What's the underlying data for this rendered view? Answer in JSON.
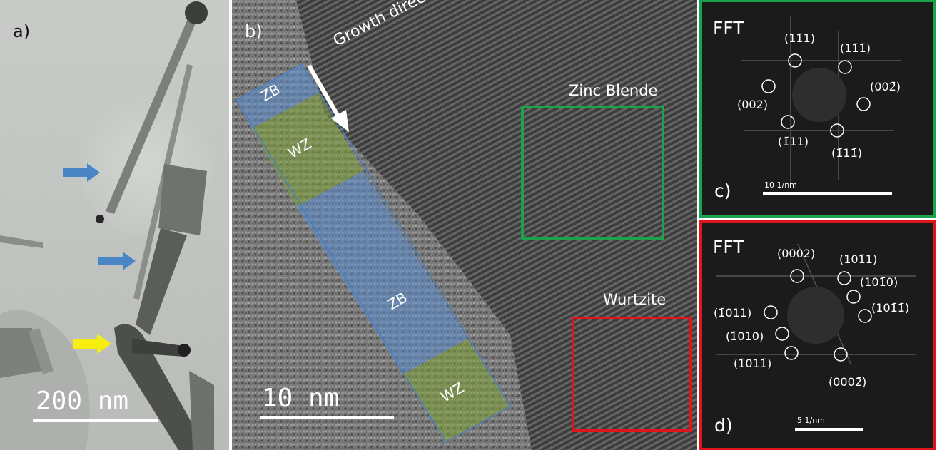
{
  "panel_a": {
    "label": "a)",
    "scale_bar_label": "200 nm"
  },
  "panel_b": {
    "label": "b)",
    "growth_label": "Growth direction",
    "zinc_blende_label": "Zinc Blende",
    "wurtzite_label": "Wurtzite",
    "segments": [
      "ZB",
      "WZ",
      "ZB",
      "WZ"
    ],
    "scale_bar_label": "10 nm"
  },
  "panel_c": {
    "title": "FFT",
    "label": "c)",
    "scale_label": "10 1/nm",
    "indices": [
      "(11̄1)",
      "(11̄1̄)",
      "(002)",
      "(002̄)",
      "(1̄11)",
      "(1̄11̄)"
    ]
  },
  "panel_d": {
    "title": "FFT",
    "label": "d)",
    "scale_label": "5 1/nm",
    "indices": [
      "(0002)",
      "(101̄1)",
      "(101̄0)",
      "(101̄1̄)",
      "(1̄011)",
      "(1̄010)",
      "(1̄011̄)",
      "(0002̄)"
    ]
  },
  "colors": {
    "blue_arrow": "#4a86c6",
    "yellow_arrow": "#f5ee0f",
    "zb_overlay": "#5b8fd1",
    "wz_overlay": "#7fa33a",
    "green_frame": "#1aa34a",
    "red_frame": "#e0151b"
  }
}
